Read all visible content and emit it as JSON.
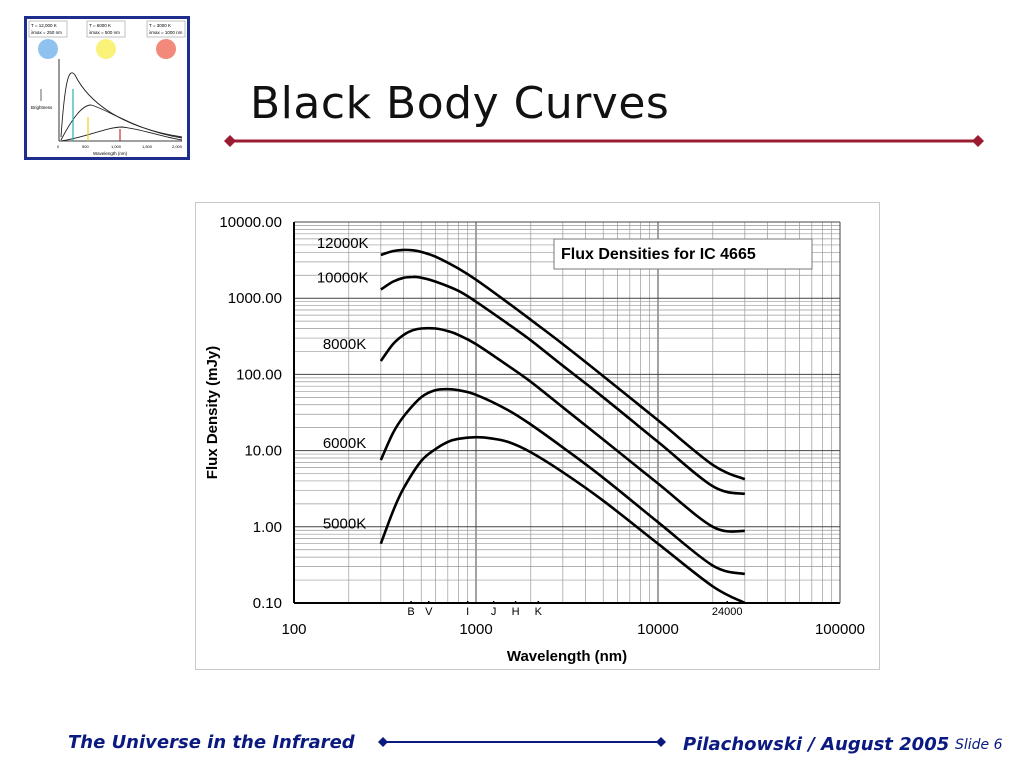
{
  "slide": {
    "title": "Black Body Curves",
    "footer_left": "The Universe in the Infrared",
    "footer_right": "Pilachowski / August 2005",
    "slide_number": "Slide 6",
    "accent_color": "#9b1b30",
    "footer_color": "#0a1a80"
  },
  "thumbnail": {
    "stars": [
      {
        "temp": "T = 12,000 K",
        "peak": "λmax = 250 nm",
        "color": "#8fc3ef"
      },
      {
        "temp": "T = 6000 K",
        "peak": "λmax = 500 nm",
        "color": "#fbf27a"
      },
      {
        "temp": "T = 3000 K",
        "peak": "λmax = 1000 nm",
        "color": "#f2897b"
      }
    ],
    "ylabel": "Brightness",
    "xlabel": "Wavelength (nm)",
    "ticks": [
      "0",
      "500",
      "1,000",
      "1,500",
      "2,000"
    ]
  },
  "chart_data": {
    "type": "line",
    "title": "Flux Densities for IC 4665",
    "xlabel": "Wavelength (nm)",
    "ylabel": "Flux Density (mJy)",
    "xscale": "log",
    "yscale": "log",
    "xlim": [
      100,
      100000
    ],
    "ylim": [
      0.1,
      10000
    ],
    "xticks": [
      "100",
      "1000",
      "10000",
      "100000"
    ],
    "yticks": [
      "0.10",
      "1.00",
      "10.00",
      "100.00",
      "1000.00",
      "10000.00"
    ],
    "grid": true,
    "bands": [
      {
        "label": "B",
        "x": 440
      },
      {
        "label": "V",
        "x": 550
      },
      {
        "label": "I",
        "x": 900
      },
      {
        "label": "J",
        "x": 1250
      },
      {
        "label": "H",
        "x": 1650
      },
      {
        "label": "K",
        "x": 2200
      },
      {
        "label": "24000",
        "x": 24000
      }
    ],
    "series": [
      {
        "name": "12000K",
        "x": [
          300,
          350,
          400,
          450,
          500,
          600,
          800,
          1000,
          1500,
          2000,
          3000,
          5000,
          10000,
          20000,
          30000
        ],
        "y": [
          3700,
          4150,
          4300,
          4250,
          4050,
          3500,
          2450,
          1750,
          870,
          520,
          250,
          95,
          25,
          6.5,
          4.2
        ]
      },
      {
        "name": "10000K",
        "x": [
          300,
          350,
          400,
          450,
          500,
          600,
          800,
          1000,
          1500,
          2000,
          3000,
          5000,
          10000,
          20000,
          30000
        ],
        "y": [
          1300,
          1650,
          1850,
          1900,
          1860,
          1650,
          1250,
          900,
          460,
          280,
          130,
          50,
          13,
          3.4,
          2.7
        ]
      },
      {
        "name": "8000K",
        "x": [
          300,
          350,
          400,
          450,
          500,
          600,
          700,
          800,
          1000,
          1500,
          2000,
          3000,
          5000,
          10000,
          20000,
          30000
        ],
        "y": [
          150,
          250,
          330,
          380,
          400,
          400,
          370,
          330,
          250,
          130,
          80,
          37,
          14,
          3.7,
          1.0,
          0.88
        ]
      },
      {
        "name": "6000K",
        "x": [
          300,
          350,
          400,
          500,
          600,
          700,
          800,
          1000,
          1500,
          2000,
          3000,
          5000,
          10000,
          20000,
          30000
        ],
        "y": [
          7.5,
          17,
          28,
          50,
          62,
          64,
          62,
          54,
          34,
          22,
          11,
          4.4,
          1.15,
          0.31,
          0.24
        ]
      },
      {
        "name": "5000K",
        "x": [
          300,
          350,
          400,
          500,
          600,
          700,
          800,
          1000,
          1200,
          1500,
          2000,
          3000,
          5000,
          10000,
          20000,
          30000
        ],
        "y": [
          0.6,
          1.6,
          3.2,
          7.3,
          10.5,
          13,
          14.3,
          15,
          14.5,
          13,
          9.5,
          5.2,
          2.2,
          0.6,
          0.165,
          0.1
        ]
      }
    ]
  }
}
